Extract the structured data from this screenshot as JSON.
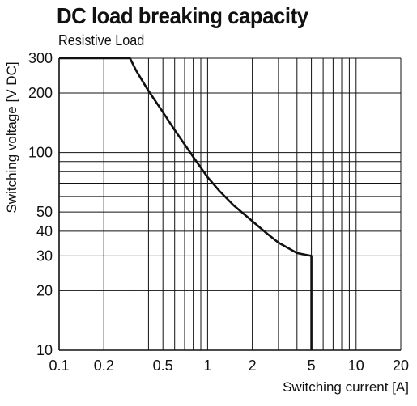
{
  "chart_data": {
    "type": "line",
    "title": "DC load breaking capacity",
    "subtitle": "Resistive Load",
    "xlabel": "Switching current [A]",
    "ylabel": "Switching voltage [V DC]",
    "xscale": "log",
    "yscale": "log",
    "xlim": [
      0.1,
      20
    ],
    "ylim": [
      10,
      300
    ],
    "x_ticks": [
      0.1,
      0.2,
      0.5,
      1,
      2,
      5,
      10,
      20
    ],
    "x_tick_labels": [
      "0.1",
      "0.2",
      "0.5",
      "1",
      "2",
      "5",
      "10",
      "20"
    ],
    "y_ticks": [
      10,
      20,
      30,
      40,
      50,
      100,
      200,
      300
    ],
    "y_tick_labels": [
      "10",
      "20",
      "30",
      "40",
      "50",
      "100",
      "200",
      "300"
    ],
    "grid": true,
    "series": [
      {
        "x": [
          0.1,
          0.3,
          0.33,
          0.4,
          0.5,
          0.6,
          0.7,
          0.8,
          1.0,
          1.2,
          1.5,
          2.0,
          2.5,
          3.0,
          4.0,
          5.0,
          5.0
        ],
        "y": [
          300,
          300,
          260,
          205,
          160,
          130,
          110,
          95,
          75,
          64,
          54,
          45,
          39,
          35,
          31,
          30,
          10
        ]
      }
    ]
  }
}
